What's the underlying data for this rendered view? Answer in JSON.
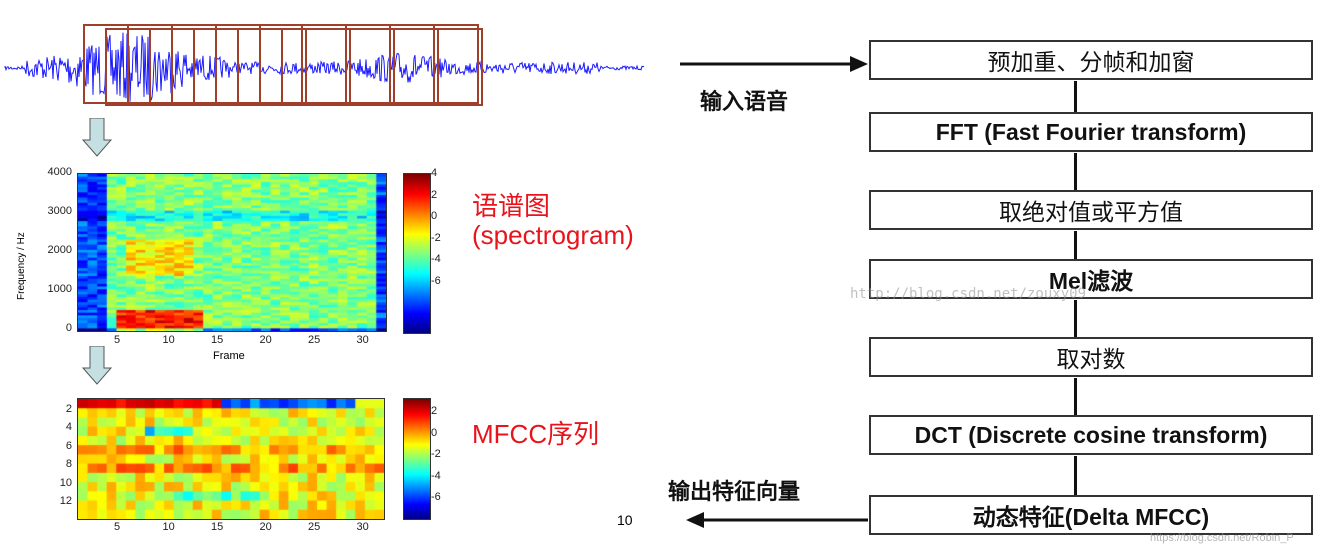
{
  "left": {
    "spectrogram": {
      "ylabel": "Frequency / Hz",
      "xlabel": "Frame",
      "yticks": [
        "4000",
        "3000",
        "2000",
        "1000",
        "0"
      ],
      "xticks": [
        "5",
        "10",
        "15",
        "20",
        "25",
        "30"
      ],
      "colorbar_ticks": [
        "4",
        "2",
        "0",
        "-2",
        "-4",
        "-6"
      ],
      "label_cn": "语谱图",
      "label_en": "(spectrogram)"
    },
    "mfcc": {
      "yticks": [
        "2",
        "4",
        "6",
        "8",
        "10",
        "12"
      ],
      "xticks": [
        "5",
        "10",
        "15",
        "20",
        "25",
        "30"
      ],
      "colorbar_ticks": [
        "2",
        "0",
        "-2",
        "-4",
        "-6"
      ],
      "label": "MFCC序列"
    },
    "page_number": "10",
    "colors": {
      "waveform": "#1a1aff",
      "window": "#a0402a",
      "arrow_fill": "#c5e0e3"
    }
  },
  "flowchart": {
    "input_label": "输入语音",
    "output_label": "输出特征向量",
    "steps": [
      "预加重、分帧和加窗",
      "FFT (Fast Fourier transform)",
      "取绝对值或平方值",
      "Mel滤波",
      "取对数",
      "DCT (Discrete cosine transform)",
      "动态特征(Delta MFCC)"
    ]
  },
  "watermarks": {
    "center": "http://blog.csdn.net/zouxy09",
    "bottom": "https://blog.csdn.net/Robin_P"
  }
}
